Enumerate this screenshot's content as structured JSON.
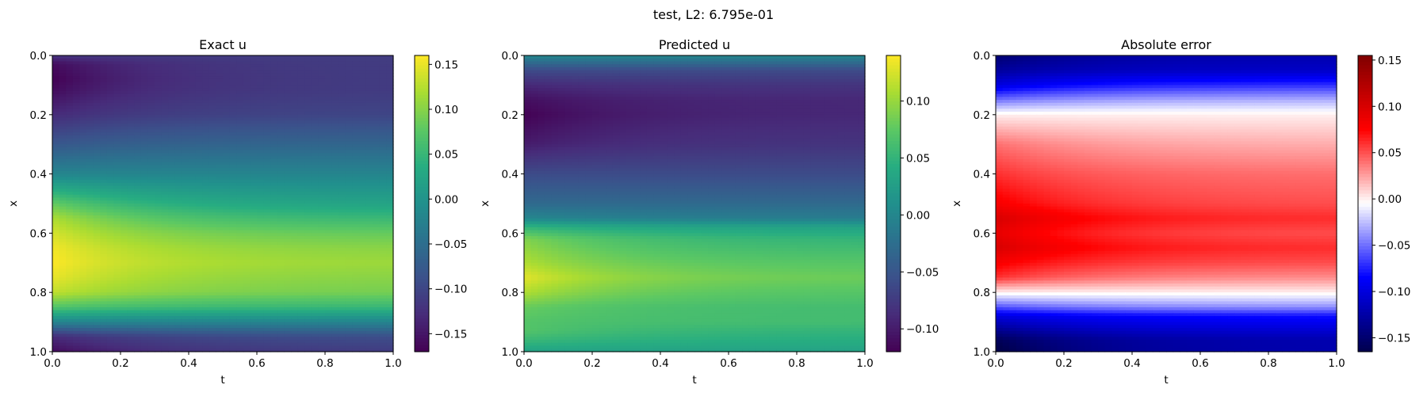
{
  "figure": {
    "suptitle": "test, L2: 6.795e-01"
  },
  "chart_data": [
    {
      "type": "heatmap",
      "title": "Exact u",
      "xlabel": "t",
      "ylabel": "x",
      "xlim": [
        0.0,
        1.0
      ],
      "ylim": [
        1.0,
        0.0
      ],
      "x_ticks": [
        "0.0",
        "0.2",
        "0.4",
        "0.6",
        "0.8",
        "1.0"
      ],
      "y_ticks": [
        "0.0",
        "0.2",
        "0.4",
        "0.6",
        "0.8",
        "1.0"
      ],
      "colormap": "viridis",
      "colorbar": {
        "min": -0.17,
        "max": 0.16,
        "ticks": [
          -0.15,
          -0.1,
          -0.05,
          0.0,
          0.05,
          0.1,
          0.15
        ],
        "tick_labels": [
          "−0.15",
          "−0.10",
          "−0.05",
          "0.00",
          "0.05",
          "0.10",
          "0.15"
        ]
      },
      "profile_x": [
        0.0,
        0.03,
        0.08,
        0.12,
        0.2,
        0.3,
        0.4,
        0.5,
        0.55,
        0.6,
        0.65,
        0.7,
        0.75,
        0.8,
        0.85,
        0.9,
        0.95,
        1.0
      ],
      "profile_left": [
        -0.12,
        -0.16,
        -0.17,
        -0.16,
        -0.13,
        -0.08,
        -0.02,
        0.08,
        0.12,
        0.14,
        0.155,
        0.16,
        0.15,
        0.13,
        0.07,
        -0.02,
        -0.13,
        -0.16
      ],
      "profile_right": [
        -0.11,
        -0.11,
        -0.11,
        -0.11,
        -0.1,
        -0.06,
        -0.02,
        0.02,
        0.05,
        0.08,
        0.1,
        0.11,
        0.1,
        0.09,
        0.05,
        -0.02,
        -0.09,
        -0.11
      ]
    },
    {
      "type": "heatmap",
      "title": "Predicted u",
      "xlabel": "t",
      "ylabel": "x",
      "xlim": [
        0.0,
        1.0
      ],
      "ylim": [
        1.0,
        0.0
      ],
      "x_ticks": [
        "0.0",
        "0.2",
        "0.4",
        "0.6",
        "0.8",
        "1.0"
      ],
      "y_ticks": [
        "0.0",
        "0.2",
        "0.4",
        "0.6",
        "0.8",
        "1.0"
      ],
      "colormap": "viridis",
      "colorbar": {
        "min": -0.12,
        "max": 0.14,
        "ticks": [
          -0.1,
          -0.05,
          0.0,
          0.05,
          0.1
        ],
        "tick_labels": [
          "−0.10",
          "−0.05",
          "0.00",
          "0.05",
          "0.10"
        ]
      },
      "profile_x": [
        0.0,
        0.05,
        0.1,
        0.15,
        0.2,
        0.3,
        0.4,
        0.5,
        0.55,
        0.58,
        0.62,
        0.7,
        0.75,
        0.8,
        0.85,
        0.9,
        0.93,
        0.97,
        1.0
      ],
      "profile_left": [
        0.0,
        -0.06,
        -0.09,
        -0.11,
        -0.12,
        -0.1,
        -0.06,
        -0.03,
        0.0,
        0.05,
        0.09,
        0.11,
        0.13,
        0.11,
        0.08,
        0.07,
        0.07,
        0.05,
        0.03
      ],
      "profile_right": [
        0.0,
        -0.06,
        -0.08,
        -0.09,
        -0.09,
        -0.08,
        -0.06,
        -0.03,
        -0.01,
        0.03,
        0.05,
        0.07,
        0.08,
        0.07,
        0.06,
        0.06,
        0.05,
        0.04,
        0.03
      ]
    },
    {
      "type": "heatmap",
      "title": "Absolute error",
      "xlabel": "t",
      "ylabel": "x",
      "xlim": [
        0.0,
        1.0
      ],
      "ylim": [
        1.0,
        0.0
      ],
      "x_ticks": [
        "0.0",
        "0.2",
        "0.4",
        "0.6",
        "0.8",
        "1.0"
      ],
      "y_ticks": [
        "0.0",
        "0.2",
        "0.4",
        "0.6",
        "0.8",
        "1.0"
      ],
      "colormap": "seismic",
      "colorbar": {
        "min": -0.165,
        "max": 0.155,
        "ticks": [
          -0.15,
          -0.1,
          -0.05,
          0.0,
          0.05,
          0.1,
          0.15
        ],
        "tick_labels": [
          "−0.15",
          "−0.10",
          "−0.05",
          "0.00",
          "0.05",
          "0.10",
          "0.15"
        ]
      },
      "profile_x": [
        0.0,
        0.05,
        0.1,
        0.15,
        0.2,
        0.3,
        0.4,
        0.5,
        0.55,
        0.6,
        0.65,
        0.7,
        0.75,
        0.8,
        0.85,
        0.88,
        0.92,
        0.96,
        1.0
      ],
      "profile_left": [
        -0.15,
        -0.13,
        -0.1,
        -0.05,
        0.0,
        0.04,
        0.06,
        0.08,
        0.1,
        0.09,
        0.1,
        0.08,
        0.06,
        0.0,
        -0.06,
        -0.1,
        -0.13,
        -0.16,
        -0.17
      ],
      "profile_right": [
        -0.12,
        -0.11,
        -0.07,
        -0.03,
        0.0,
        0.02,
        0.04,
        0.05,
        0.06,
        0.05,
        0.06,
        0.05,
        0.03,
        0.0,
        -0.04,
        -0.08,
        -0.1,
        -0.12,
        -0.12
      ]
    }
  ]
}
